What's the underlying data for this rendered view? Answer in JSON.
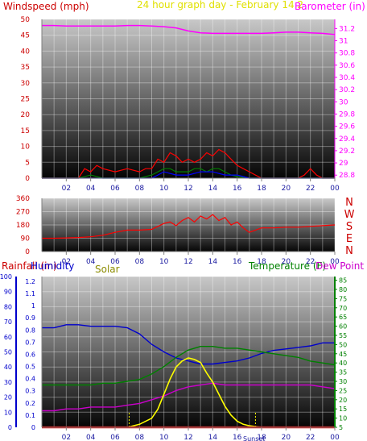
{
  "header": {
    "windspeed_label": "Windspeed (mph)",
    "title": "24 hour graph day - February 14 2",
    "barometer_label": "Barometer (in)"
  },
  "colors": {
    "windspeed_label": "#cc0000",
    "title": "#e0e000",
    "barometer": "#ff00ff",
    "wind_gust": "#ff0000",
    "wind_avg": "#008000",
    "wind_low": "#0000ff",
    "wind_direction": "#ff0000",
    "rain": "#cc0000",
    "humidity": "#0000cc",
    "solar": "#ffff00",
    "temperature": "#008000",
    "dew_point": "#cc00cc",
    "dir_letters": "#cc0000"
  },
  "chart_data": [
    {
      "type": "line",
      "name": "wind-barometer",
      "x_ticks": [
        "02",
        "04",
        "06",
        "08",
        "10",
        "12",
        "14",
        "16",
        "18",
        "20",
        "22",
        "00"
      ],
      "y_left_ticks": [
        "0",
        "5",
        "10",
        "15",
        "20",
        "25",
        "30",
        "35",
        "40",
        "45",
        "50"
      ],
      "y_left_range": [
        0,
        50
      ],
      "y_right_ticks": [
        "28.8",
        "29",
        "29.2",
        "29.4",
        "29.6",
        "29.8",
        "30",
        "30.2",
        "30.4",
        "30.6",
        "30.8",
        "31",
        "31.2"
      ],
      "y_right_range": [
        28.75,
        31.35
      ],
      "grid": true,
      "series": [
        {
          "key": "barometer",
          "axis": "right",
          "x": [
            0,
            1,
            2,
            3,
            4,
            5,
            6,
            7,
            8,
            9,
            10,
            11,
            12,
            13,
            14,
            15,
            16,
            17,
            18,
            19,
            20,
            21,
            22,
            23,
            24
          ],
          "y": [
            31.25,
            31.25,
            31.24,
            31.24,
            31.24,
            31.24,
            31.24,
            31.25,
            31.25,
            31.24,
            31.23,
            31.21,
            31.16,
            31.13,
            31.12,
            31.12,
            31.12,
            31.12,
            31.12,
            31.13,
            31.14,
            31.14,
            31.13,
            31.12,
            31.1
          ]
        },
        {
          "key": "wind_gust",
          "axis": "left",
          "x": [
            0,
            2,
            3,
            3.5,
            4,
            4.5,
            5,
            6,
            7,
            8,
            8.5,
            9,
            9.5,
            10,
            10.5,
            11,
            11.5,
            12,
            12.5,
            13,
            13.5,
            14,
            14.5,
            15,
            15.5,
            16,
            16.5,
            17,
            17.5,
            18,
            18.5,
            19,
            20,
            21,
            21.5,
            22,
            22.5,
            23,
            24
          ],
          "y": [
            0,
            0,
            0,
            3,
            2,
            4,
            3,
            2,
            3,
            2,
            3,
            3,
            6,
            5,
            8,
            7,
            5,
            6,
            5,
            6,
            8,
            7,
            9,
            8,
            6,
            4,
            3,
            2,
            1,
            0,
            0,
            0,
            0,
            0,
            1,
            3,
            1,
            0,
            0
          ]
        },
        {
          "key": "wind_avg",
          "axis": "left",
          "x": [
            0,
            3,
            4,
            5,
            6,
            7,
            8,
            9,
            9.5,
            10,
            10.5,
            11,
            11.5,
            12,
            12.5,
            13,
            13.5,
            14,
            14.5,
            15,
            15.5,
            16,
            16.5,
            17,
            18,
            24
          ],
          "y": [
            0,
            0,
            1,
            0,
            0,
            0,
            0,
            1,
            2,
            3,
            3,
            2,
            2,
            2,
            3,
            3,
            2,
            3,
            3,
            2,
            1,
            0.5,
            0.2,
            0,
            0,
            0
          ]
        },
        {
          "key": "wind_low",
          "axis": "left",
          "x": [
            0,
            9,
            9.5,
            10,
            11,
            12,
            13,
            14,
            15,
            16,
            16.5,
            17,
            24
          ],
          "y": [
            0,
            0,
            1,
            2,
            1,
            1,
            2,
            2,
            1,
            1,
            0.5,
            0,
            0
          ]
        }
      ]
    },
    {
      "type": "line",
      "name": "wind-direction",
      "x_ticks": [
        "02",
        "04",
        "06",
        "08",
        "10",
        "12",
        "14",
        "16",
        "18",
        "20",
        "22",
        "00"
      ],
      "y_left_ticks": [
        "0",
        "90",
        "180",
        "270",
        "360"
      ],
      "y_left_range": [
        0,
        360
      ],
      "direction_letters": [
        "N",
        "W",
        "S",
        "E",
        "N"
      ],
      "grid": true,
      "series": [
        {
          "key": "wind_direction",
          "axis": "left",
          "x": [
            0,
            1,
            2,
            3,
            4,
            5,
            6,
            7,
            8,
            9,
            9.5,
            10,
            10.5,
            11,
            11.5,
            12,
            12.5,
            13,
            13.5,
            14,
            14.5,
            15,
            15.5,
            16,
            16.5,
            17,
            18,
            19,
            20,
            21,
            22,
            23,
            24
          ],
          "y": [
            90,
            90,
            92,
            95,
            100,
            110,
            130,
            145,
            145,
            150,
            170,
            190,
            200,
            175,
            210,
            230,
            200,
            240,
            220,
            250,
            210,
            230,
            180,
            200,
            160,
            130,
            160,
            160,
            165,
            165,
            170,
            175,
            180
          ]
        }
      ]
    },
    {
      "type": "line",
      "name": "rain-humidity-solar-temperature",
      "x_ticks": [
        "02",
        "04",
        "06",
        "08",
        "10",
        "12",
        "14",
        "16",
        "18",
        "20",
        "22",
        "00"
      ],
      "labels": {
        "rainfall": "Rainfall (in)",
        "humidity": "Humidity",
        "solar": "Solar",
        "temp_dew": "Temperature (F)",
        "dew_point": "Dew Point ("
      },
      "axis_humidity_ticks": [
        "0",
        "10",
        "20",
        "30",
        "40",
        "50",
        "60",
        "70",
        "80",
        "90",
        "100"
      ],
      "axis_rain_ticks": [
        "0",
        "0.1",
        "0.2",
        "0.3",
        "0.4",
        "0.5",
        "0.6",
        "0.7",
        "0.8",
        "0.9",
        "1",
        "1.1",
        "1.2"
      ],
      "axis_temp_ticks": [
        "5",
        "10",
        "15",
        "20",
        "25",
        "30",
        "35",
        "40",
        "45",
        "50",
        "55",
        "60",
        "65",
        "70",
        "75",
        "80",
        "85"
      ],
      "humidity_range": [
        0,
        100
      ],
      "temp_range": [
        5,
        87
      ],
      "solar_range": [
        0,
        100
      ],
      "annotation": "Sunset",
      "grid": true,
      "series": [
        {
          "key": "humidity",
          "axis": "humidity",
          "x": [
            0,
            1,
            2,
            3,
            4,
            5,
            6,
            7,
            8,
            9,
            10,
            11,
            12,
            13,
            14,
            15,
            16,
            17,
            18,
            19,
            20,
            21,
            22,
            23,
            24
          ],
          "y": [
            66,
            66,
            68,
            68,
            67,
            67,
            67,
            66,
            62,
            55,
            50,
            46,
            44,
            42,
            42,
            43,
            44,
            46,
            49,
            51,
            52,
            53,
            54,
            56,
            56
          ]
        },
        {
          "key": "temperature",
          "axis": "temp",
          "x": [
            0,
            1,
            2,
            3,
            4,
            5,
            6,
            7,
            8,
            9,
            10,
            11,
            12,
            13,
            14,
            15,
            16,
            17,
            18,
            19,
            20,
            21,
            22,
            23,
            24
          ],
          "y": [
            28,
            28,
            28,
            28,
            28,
            29,
            29,
            30,
            31,
            34,
            38,
            43,
            47,
            49,
            49,
            48,
            48,
            47,
            46,
            45,
            44,
            43,
            41,
            40,
            39
          ]
        },
        {
          "key": "dew_point",
          "axis": "temp",
          "x": [
            0,
            1,
            2,
            3,
            4,
            5,
            6,
            7,
            8,
            9,
            10,
            11,
            12,
            13,
            14,
            15,
            16,
            17,
            18,
            19,
            20,
            21,
            22,
            23,
            24
          ],
          "y": [
            14,
            14,
            15,
            15,
            16,
            16,
            16,
            17,
            18,
            20,
            22,
            25,
            27,
            28,
            29,
            28,
            28,
            28,
            28,
            28,
            28,
            28,
            28,
            27,
            26
          ]
        },
        {
          "key": "solar",
          "axis": "solar",
          "x": [
            0,
            7,
            8,
            9,
            9.5,
            10,
            10.5,
            11,
            11.5,
            12,
            12.5,
            13,
            13.5,
            14,
            14.5,
            15,
            15.5,
            16,
            16.5,
            17,
            18,
            24
          ],
          "y": [
            0,
            0,
            2,
            6,
            12,
            22,
            32,
            40,
            44,
            46,
            45,
            43,
            36,
            30,
            22,
            14,
            8,
            4,
            2,
            1,
            0,
            0
          ]
        },
        {
          "key": "rain",
          "axis": "rain",
          "x": [
            0,
            24
          ],
          "y": [
            0,
            0
          ]
        }
      ]
    }
  ]
}
